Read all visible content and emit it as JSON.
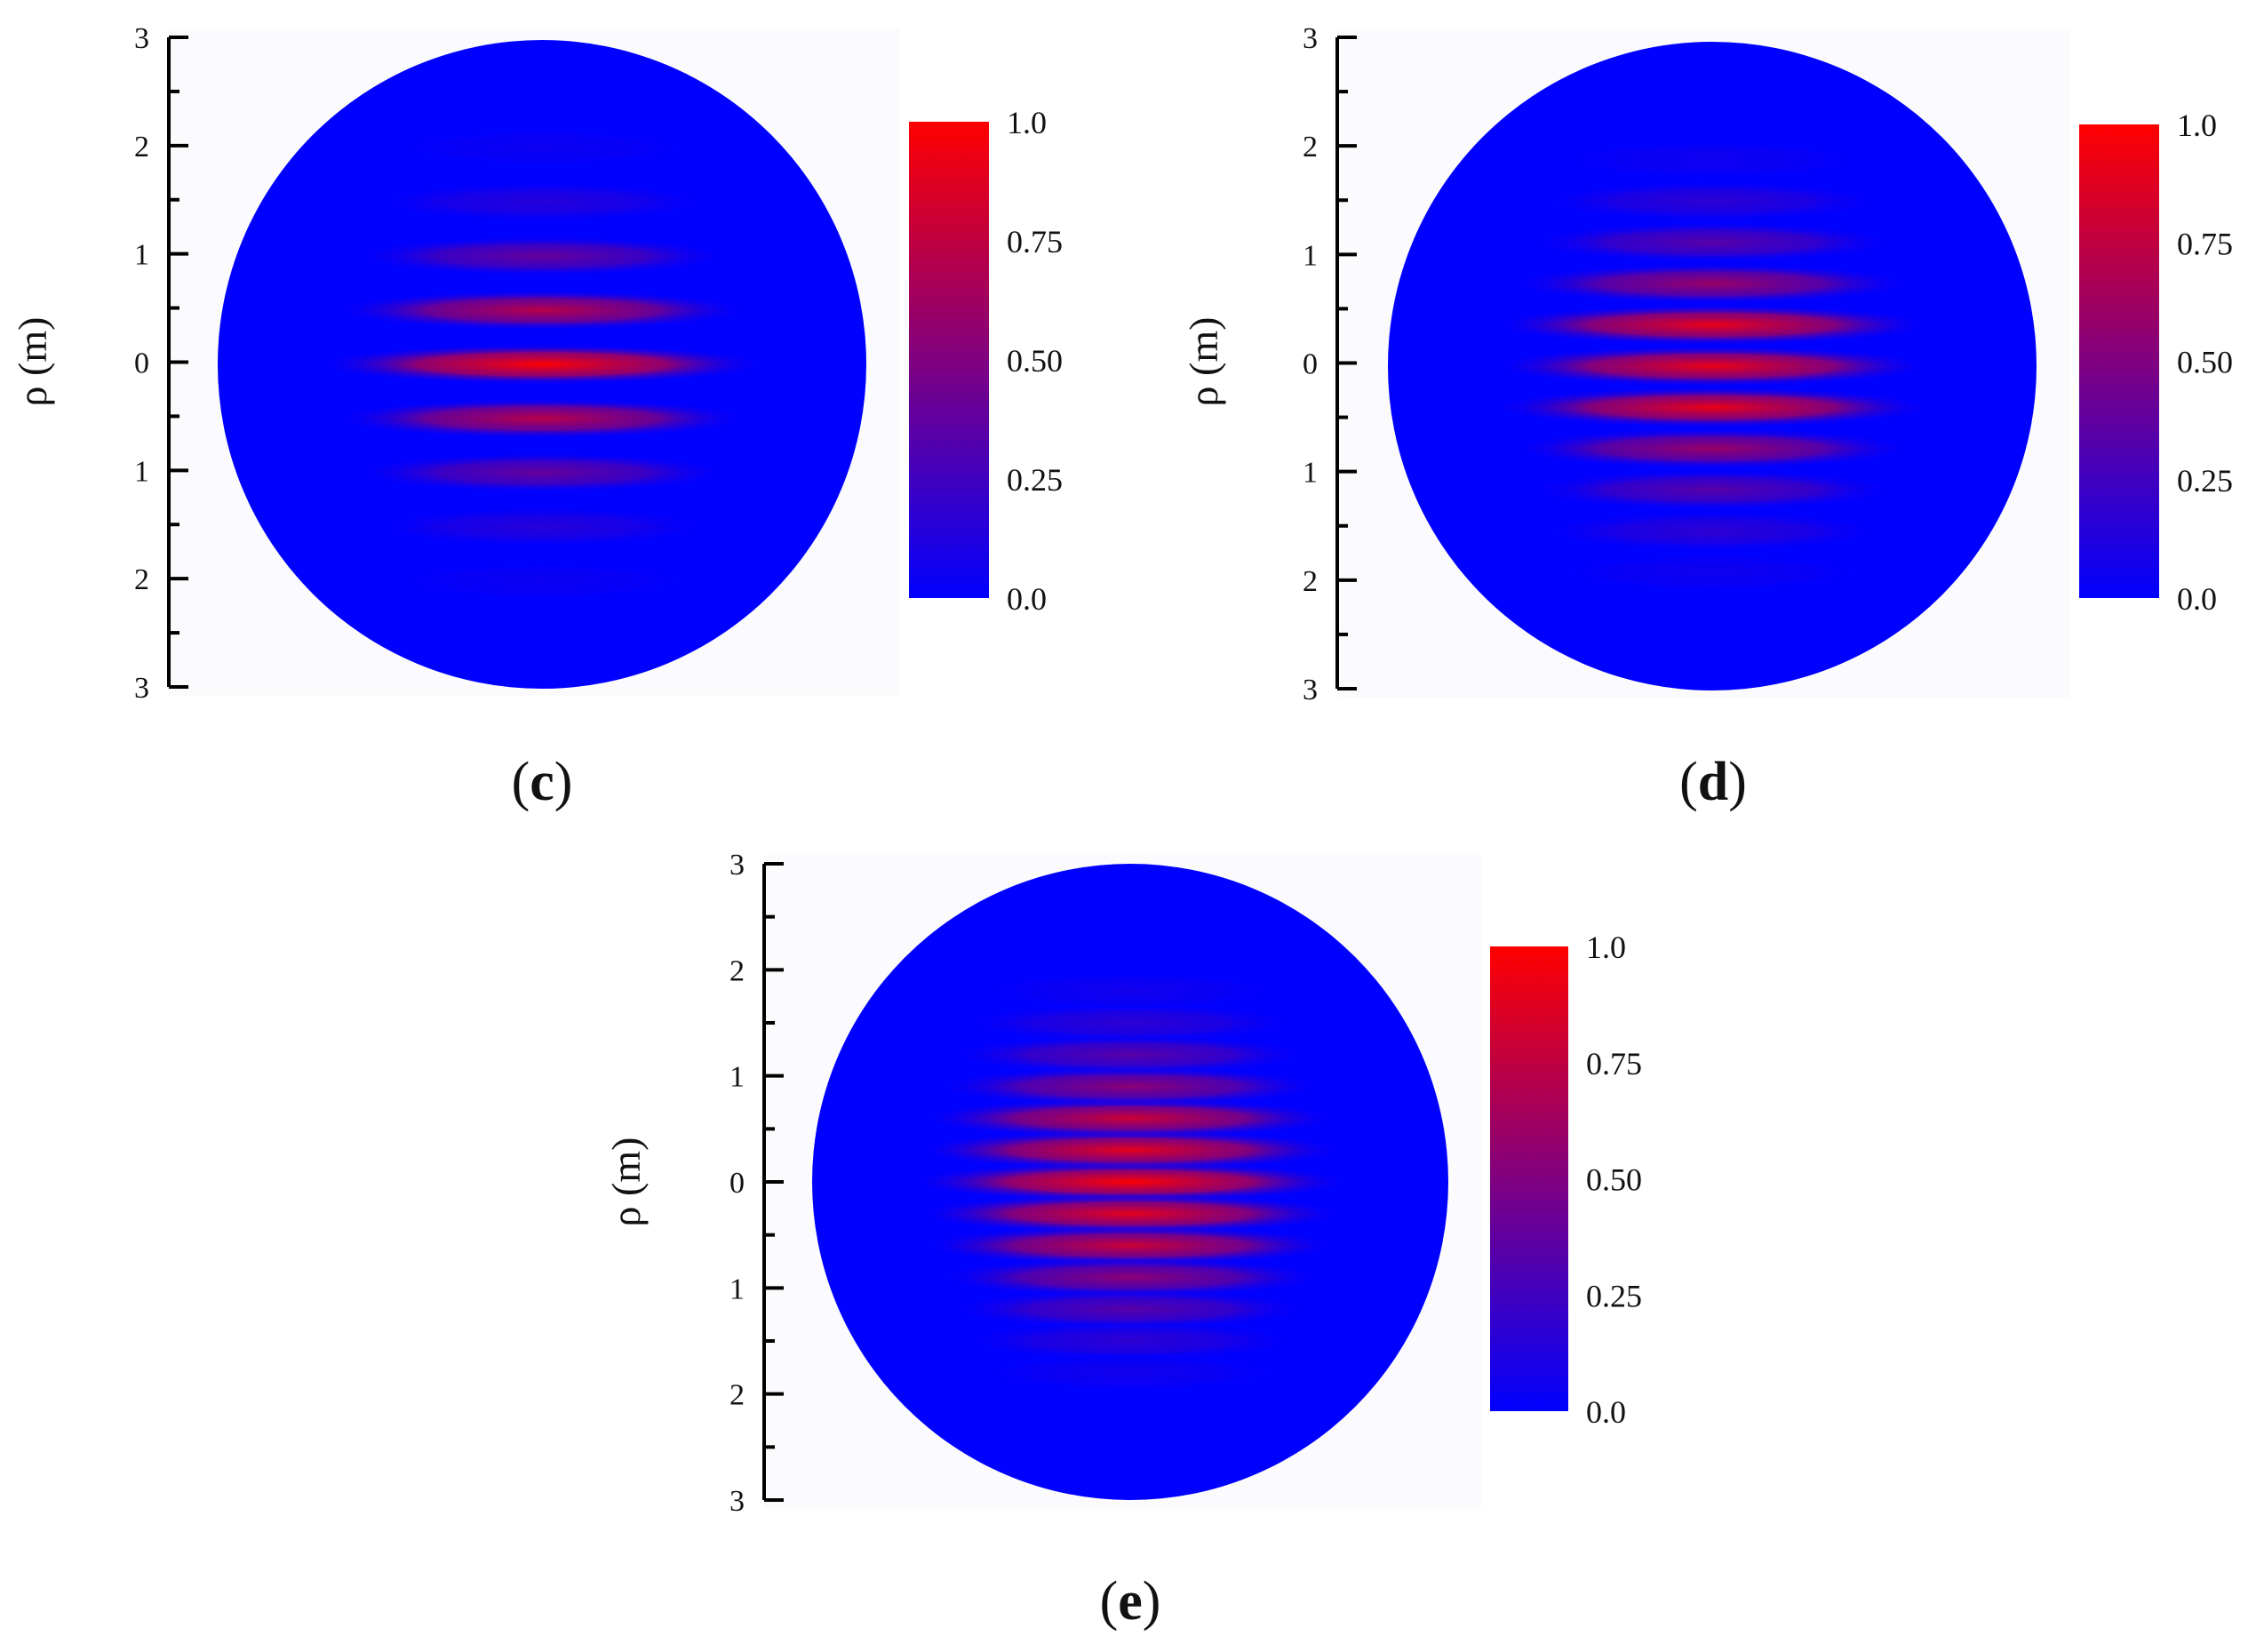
{
  "chart_data": [
    {
      "type": "heatmap",
      "panel_label": "c",
      "ylabel": "ρ (m)",
      "ytick_labels": [
        "3",
        "2",
        "1",
        "0",
        "1",
        "2",
        "3"
      ],
      "ytick_values": [
        3,
        2,
        1,
        0,
        -1,
        -2,
        -3
      ],
      "ylim": [
        -3,
        3
      ],
      "shape": "disk",
      "disk_radius": 3,
      "fringes": [
        {
          "rho": 0.0,
          "intensity": 1.0
        },
        {
          "rho": 0.5,
          "intensity": 0.72
        },
        {
          "rho": -0.5,
          "intensity": 0.72
        },
        {
          "rho": 1.0,
          "intensity": 0.4
        },
        {
          "rho": -1.0,
          "intensity": 0.4
        },
        {
          "rho": 1.5,
          "intensity": 0.15
        },
        {
          "rho": -1.5,
          "intensity": 0.15
        },
        {
          "rho": 2.0,
          "intensity": 0.05
        },
        {
          "rho": -2.0,
          "intensity": 0.05
        }
      ],
      "colorbar": {
        "range": [
          0.0,
          1.0
        ],
        "tick_labels": [
          "1.0",
          "0.75",
          "0.50",
          "0.25",
          "0.0"
        ],
        "colors": [
          "#0000ff",
          "#ff0000"
        ]
      }
    },
    {
      "type": "heatmap",
      "panel_label": "d",
      "ylabel": "ρ (m)",
      "ytick_labels": [
        "3",
        "2",
        "1",
        "0",
        "1",
        "2",
        "3"
      ],
      "ytick_values": [
        3,
        2,
        1,
        0,
        -1,
        -2,
        -3
      ],
      "ylim": [
        -3,
        3
      ],
      "shape": "disk",
      "disk_radius": 3,
      "fringes": [
        {
          "rho": 0.0,
          "intensity": 0.92
        },
        {
          "rho": 0.38,
          "intensity": 0.92
        },
        {
          "rho": -0.38,
          "intensity": 0.92
        },
        {
          "rho": 0.76,
          "intensity": 0.6
        },
        {
          "rho": -0.76,
          "intensity": 0.6
        },
        {
          "rho": 1.14,
          "intensity": 0.35
        },
        {
          "rho": -1.14,
          "intensity": 0.35
        },
        {
          "rho": 1.52,
          "intensity": 0.18
        },
        {
          "rho": -1.52,
          "intensity": 0.18
        },
        {
          "rho": 1.9,
          "intensity": 0.06
        },
        {
          "rho": -1.9,
          "intensity": 0.06
        }
      ],
      "colorbar": {
        "range": [
          0.0,
          1.0
        ],
        "tick_labels": [
          "1.0",
          "0.75",
          "0.50",
          "0.25",
          "0.0"
        ],
        "colors": [
          "#0000ff",
          "#ff0000"
        ]
      }
    },
    {
      "type": "heatmap",
      "panel_label": "e",
      "ylabel": "ρ (m)",
      "ytick_labels": [
        "3",
        "2",
        "1",
        "0",
        "1",
        "2",
        "3"
      ],
      "ytick_values": [
        3,
        2,
        1,
        0,
        -1,
        -2,
        -3
      ],
      "ylim": [
        -3,
        3
      ],
      "shape": "disk",
      "disk_radius": 3,
      "fringes": [
        {
          "rho": 0.0,
          "intensity": 1.0
        },
        {
          "rho": 0.3,
          "intensity": 0.9
        },
        {
          "rho": -0.3,
          "intensity": 0.9
        },
        {
          "rho": 0.6,
          "intensity": 0.8
        },
        {
          "rho": -0.6,
          "intensity": 0.8
        },
        {
          "rho": 0.9,
          "intensity": 0.55
        },
        {
          "rho": -0.9,
          "intensity": 0.55
        },
        {
          "rho": 1.2,
          "intensity": 0.35
        },
        {
          "rho": -1.2,
          "intensity": 0.35
        },
        {
          "rho": 1.5,
          "intensity": 0.18
        },
        {
          "rho": -1.5,
          "intensity": 0.18
        },
        {
          "rho": 1.8,
          "intensity": 0.07
        },
        {
          "rho": -1.8,
          "intensity": 0.07
        }
      ],
      "colorbar": {
        "range": [
          0.0,
          1.0
        ],
        "tick_labels": [
          "1.0",
          "0.75",
          "0.50",
          "0.25",
          "0.0"
        ],
        "colors": [
          "#0000ff",
          "#ff0000"
        ]
      }
    }
  ]
}
